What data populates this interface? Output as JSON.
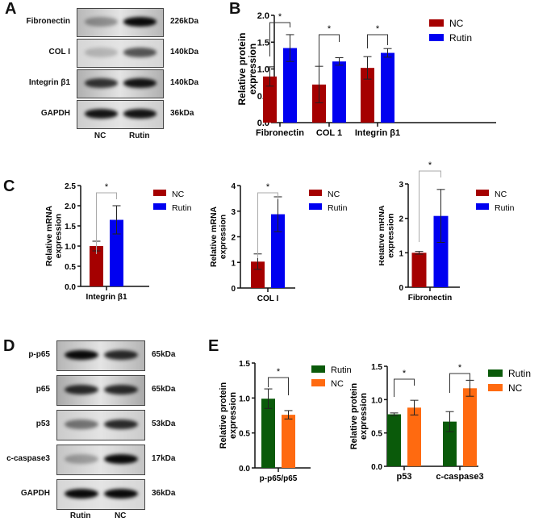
{
  "figure": {
    "panels": {
      "A": {
        "label": "A",
        "rows": [
          {
            "name": "Fibronectin",
            "kda": "226kDa",
            "bg": "#b8b8b8",
            "bands": [
              0.35,
              1.0
            ]
          },
          {
            "name": "COL I",
            "kda": "140kDa",
            "bg": "#d6d6d6",
            "bands": [
              0.2,
              0.65
            ]
          },
          {
            "name": "Integrin β1",
            "kda": "140kDa",
            "bg": "#b0b0b0",
            "bands": [
              0.8,
              0.95
            ]
          },
          {
            "name": "GAPDH",
            "kda": "36kDa",
            "bg": "#cdcdcd",
            "bands": [
              0.95,
              0.95
            ]
          }
        ],
        "lanes": [
          "NC",
          "Rutin"
        ]
      },
      "D": {
        "label": "D",
        "rows": [
          {
            "name": "p-p65",
            "kda": "65kDa",
            "bg": "#b5b5b5",
            "bands": [
              1.0,
              0.85
            ]
          },
          {
            "name": "p65",
            "kda": "65kDa",
            "bg": "#a9a9a9",
            "bands": [
              0.85,
              0.85
            ]
          },
          {
            "name": "p53",
            "kda": "53kDa",
            "bg": "#cbcbcb",
            "bands": [
              0.5,
              0.85
            ]
          },
          {
            "name": "c-caspase3",
            "kda": "17kDa",
            "bg": "#c4c4c4",
            "bands": [
              0.3,
              1.0
            ]
          },
          {
            "name": "GAPDH",
            "kda": "36kDa",
            "bg": "#d6d6d6",
            "bands": [
              1.0,
              1.0
            ]
          }
        ],
        "lanes": [
          "Rutin",
          "NC"
        ]
      },
      "B": {
        "label": "B"
      },
      "C": {
        "label": "C"
      },
      "E": {
        "label": "E"
      }
    }
  },
  "chart_data": [
    {
      "panel": "B",
      "type": "bar",
      "title": "",
      "xlabel": "",
      "ylabel": "Relative protein expression",
      "ylim": [
        0,
        2.0
      ],
      "yticks": [
        "0.0",
        "0.5",
        "1.0",
        "1.5",
        "2.0"
      ],
      "categories": [
        "Fibronectin",
        "COL 1",
        "Integrin β1"
      ],
      "series": [
        {
          "name": "NC",
          "color": "#a50000",
          "values": [
            0.86,
            0.71,
            1.02
          ],
          "errors": [
            0.18,
            0.34,
            0.21
          ]
        },
        {
          "name": "Rutin",
          "color": "#0000f0",
          "values": [
            1.39,
            1.14,
            1.3
          ],
          "errors": [
            0.25,
            0.07,
            0.08
          ]
        }
      ],
      "significance": [
        "*",
        "*",
        "*"
      ],
      "legend": [
        "NC",
        "Rutin"
      ],
      "legend_position": "right"
    },
    {
      "panel": "C",
      "type": "bar",
      "ylabel": "Relative mRNA expression",
      "ylim": [
        0,
        2.5
      ],
      "yticks": [
        "0.0",
        "0.5",
        "1.0",
        "1.5",
        "2.0",
        "2.5"
      ],
      "categories": [
        "Integrin β1"
      ],
      "series": [
        {
          "name": "NC",
          "color": "#a50000",
          "values": [
            1.0
          ],
          "errors": [
            0.12
          ]
        },
        {
          "name": "Rutin",
          "color": "#0000f0",
          "values": [
            1.65
          ],
          "errors": [
            0.35
          ]
        }
      ],
      "significance": [
        "*"
      ],
      "legend": [
        "NC",
        "Rutin"
      ]
    },
    {
      "panel": "C",
      "type": "bar",
      "ylabel": "Relative mRNA expression",
      "ylim": [
        0,
        4
      ],
      "yticks": [
        "0",
        "1",
        "2",
        "3",
        "4"
      ],
      "categories": [
        "COL I"
      ],
      "series": [
        {
          "name": "NC",
          "color": "#a50000",
          "values": [
            1.03
          ],
          "errors": [
            0.3
          ]
        },
        {
          "name": "Rutin",
          "color": "#0000f0",
          "values": [
            2.88
          ],
          "errors": [
            0.68
          ]
        }
      ],
      "significance": [
        "*"
      ],
      "legend": [
        "NC",
        "Rutin"
      ]
    },
    {
      "panel": "C",
      "type": "bar",
      "ylabel": "Relative mRNA expression",
      "ylim": [
        0,
        3
      ],
      "yticks": [
        "0",
        "1",
        "2",
        "3"
      ],
      "categories": [
        "Fibronectin"
      ],
      "series": [
        {
          "name": "NC",
          "color": "#a50000",
          "values": [
            1.0
          ],
          "errors": [
            0.04
          ]
        },
        {
          "name": "Rutin",
          "color": "#0000f0",
          "values": [
            2.07
          ],
          "errors": [
            0.77
          ]
        }
      ],
      "significance": [
        "*"
      ],
      "legend": [
        "NC",
        "Rutin"
      ]
    },
    {
      "panel": "E",
      "type": "bar",
      "ylabel": "Relative protein expression",
      "ylim": [
        0,
        1.5
      ],
      "yticks": [
        "0.0",
        "0.5",
        "1.0",
        "1.5"
      ],
      "categories": [
        "p-p65/p65"
      ],
      "series": [
        {
          "name": "Rutin",
          "color": "#0a5a0a",
          "values": [
            0.99
          ],
          "errors": [
            0.14
          ]
        },
        {
          "name": "NC",
          "color": "#ff6a10",
          "values": [
            0.76
          ],
          "errors": [
            0.06
          ]
        }
      ],
      "significance": [
        "*"
      ],
      "legend": [
        "Rutin",
        "NC"
      ]
    },
    {
      "panel": "E",
      "type": "bar",
      "ylabel": "Relative protein expression",
      "ylim": [
        0,
        1.5
      ],
      "yticks": [
        "0.0",
        "0.5",
        "1.0",
        "1.5"
      ],
      "categories": [
        "p53",
        "c-caspase3"
      ],
      "series": [
        {
          "name": "Rutin",
          "color": "#0a5a0a",
          "values": [
            0.78,
            0.67
          ],
          "errors": [
            0.02,
            0.15
          ]
        },
        {
          "name": "NC",
          "color": "#ff6a10",
          "values": [
            0.88,
            1.17
          ],
          "errors": [
            0.11,
            0.12
          ]
        }
      ],
      "significance": [
        "*",
        "*"
      ],
      "legend": [
        "Rutin",
        "NC"
      ]
    }
  ]
}
